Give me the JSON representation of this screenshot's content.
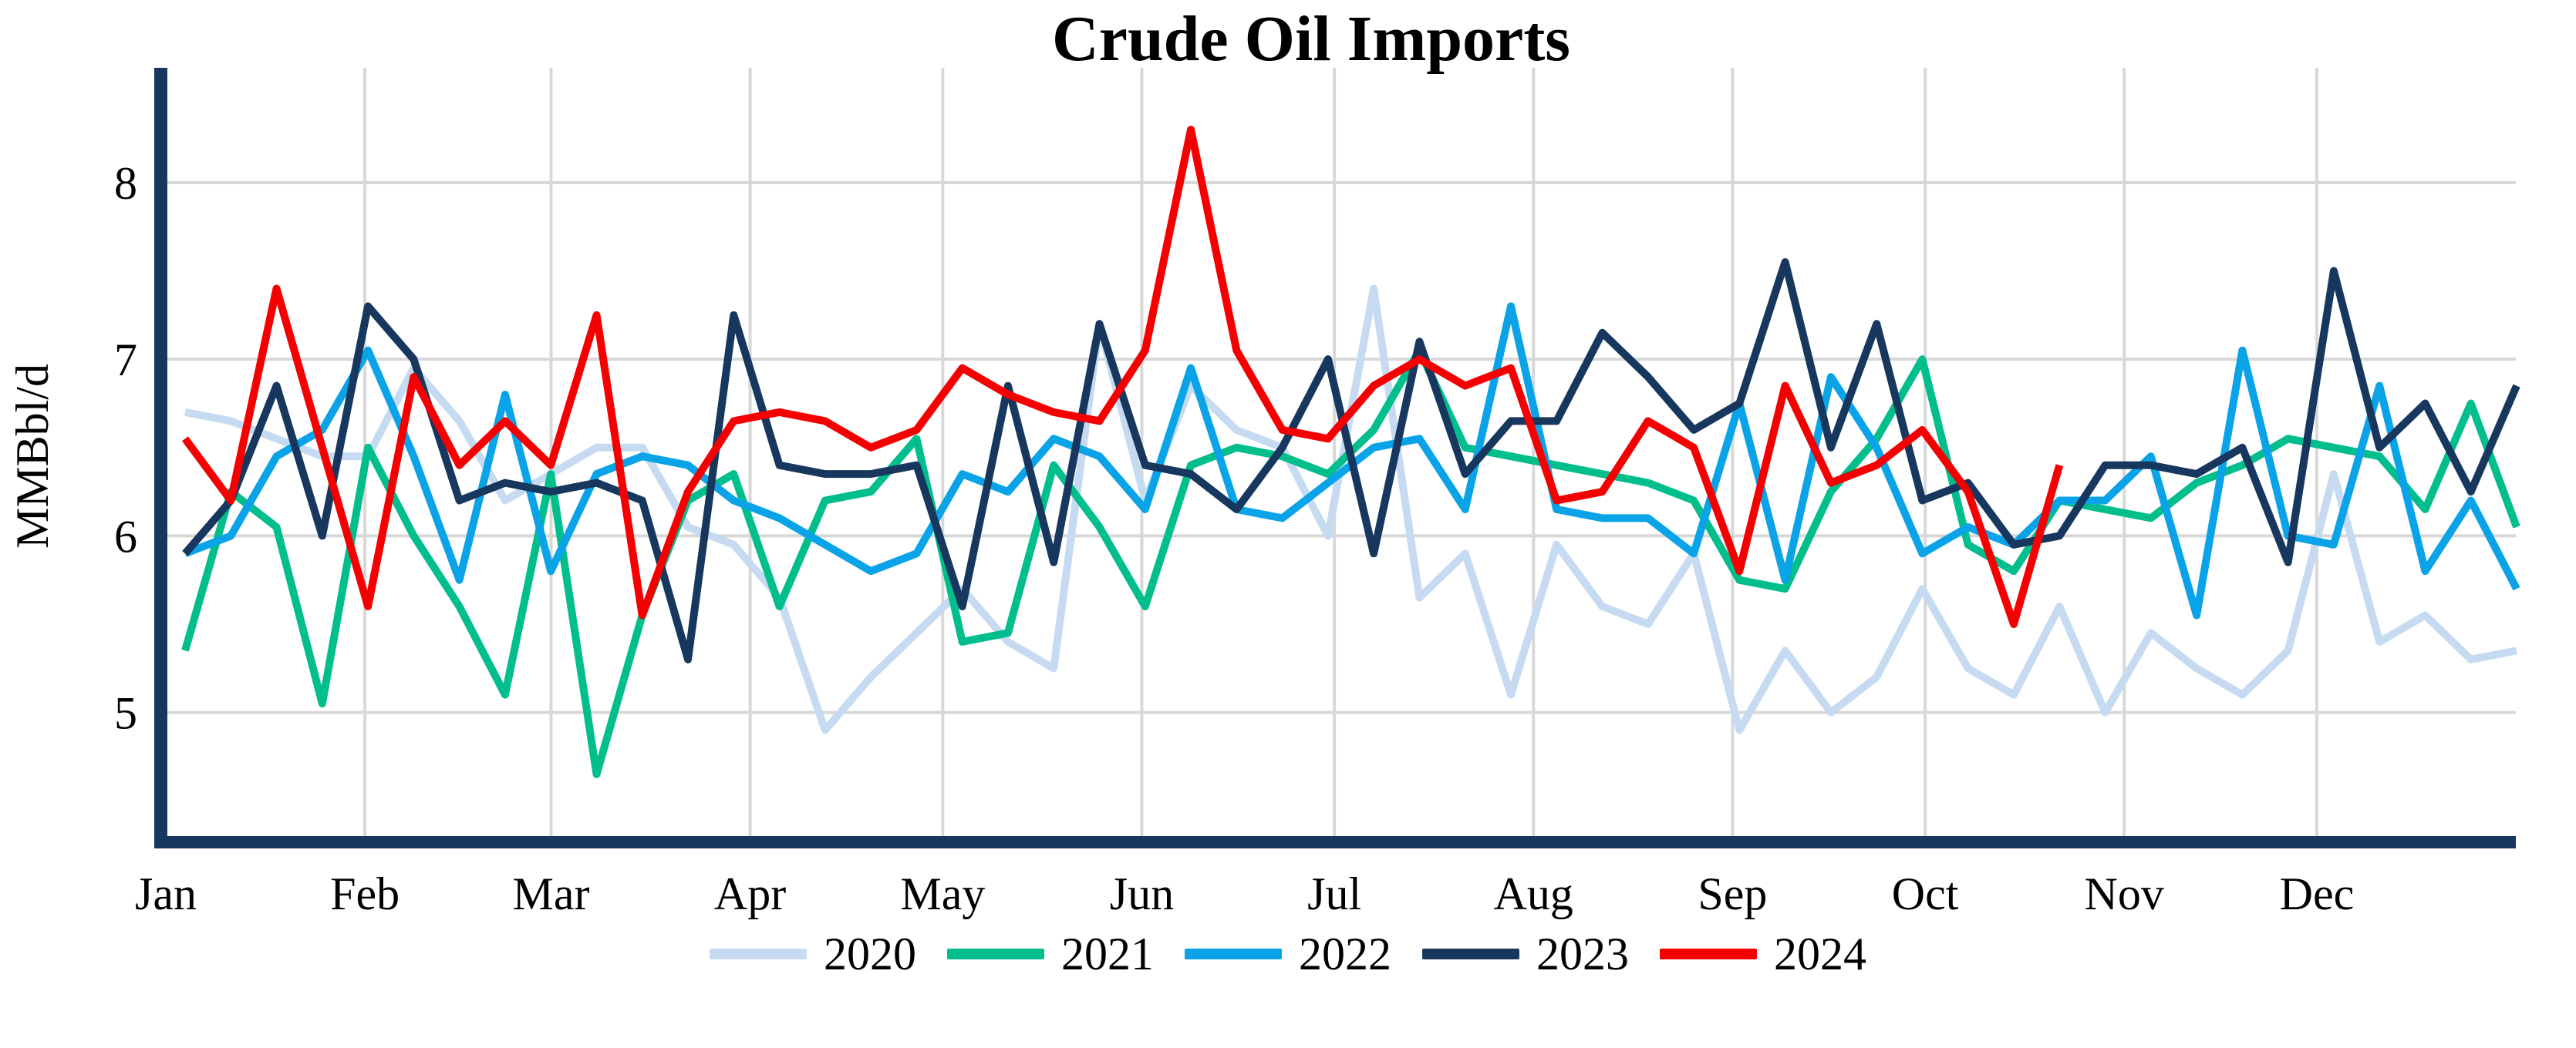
{
  "chart_data": {
    "type": "line",
    "title": "Crude Oil Imports",
    "ylabel": "MMBbl/d",
    "unit": "MMBbl/d",
    "x_tick_labels": [
      "Jan",
      "Feb",
      "Mar",
      "Apr",
      "May",
      "Jun",
      "Jul",
      "Aug",
      "Sep",
      "Oct",
      "Nov",
      "Dec"
    ],
    "month_days": [
      31,
      29,
      31,
      30,
      31,
      30,
      31,
      31,
      30,
      31,
      30,
      31
    ],
    "yticks": [
      5,
      6,
      7,
      8
    ],
    "ylim": [
      4.3,
      8.65
    ],
    "grid": true,
    "legend_position": "bottom",
    "points_per_year": 52,
    "colors": {
      "grid": "#d8d8d8",
      "axis": "#17375e",
      "text": "#000000",
      "background": "#ffffff"
    },
    "series": [
      {
        "name": "2020",
        "color": "#c6dbf1",
        "values": [
          6.7,
          6.65,
          6.55,
          6.45,
          6.45,
          6.95,
          6.65,
          6.2,
          6.35,
          6.5,
          6.5,
          6.05,
          5.95,
          5.65,
          4.9,
          5.2,
          5.45,
          5.7,
          5.4,
          5.25,
          7.2,
          6.2,
          6.85,
          6.6,
          6.5,
          6.0,
          7.4,
          5.65,
          5.9,
          5.1,
          5.95,
          5.6,
          5.5,
          5.9,
          4.9,
          5.35,
          5.0,
          5.2,
          5.7,
          5.25,
          5.1,
          5.6,
          5.0,
          5.45,
          5.25,
          5.1,
          5.35,
          6.35,
          5.4,
          5.55,
          5.3,
          5.35
        ]
      },
      {
        "name": "2021",
        "color": "#02be8c",
        "values": [
          5.35,
          6.25,
          6.05,
          5.05,
          6.5,
          6.0,
          5.6,
          5.1,
          6.35,
          4.65,
          5.55,
          6.2,
          6.35,
          5.6,
          6.2,
          6.25,
          6.55,
          5.4,
          5.45,
          6.4,
          6.05,
          5.6,
          6.4,
          6.5,
          6.45,
          6.35,
          6.6,
          7.05,
          6.5,
          6.45,
          6.4,
          6.35,
          6.3,
          6.2,
          5.75,
          5.7,
          6.25,
          6.55,
          7.0,
          5.95,
          5.8,
          6.2,
          6.15,
          6.1,
          6.3,
          6.4,
          6.55,
          6.5,
          6.45,
          6.15,
          6.75,
          6.05
        ]
      },
      {
        "name": "2022",
        "color": "#0aa3e8",
        "values": [
          5.9,
          6.0,
          6.45,
          6.6,
          7.05,
          6.45,
          5.75,
          6.8,
          5.8,
          6.35,
          6.45,
          6.4,
          6.2,
          6.1,
          5.95,
          5.8,
          5.9,
          6.35,
          6.25,
          6.55,
          6.45,
          6.15,
          6.95,
          6.15,
          6.1,
          6.3,
          6.5,
          6.55,
          6.15,
          7.3,
          6.15,
          6.1,
          6.1,
          5.9,
          6.75,
          5.75,
          6.9,
          6.5,
          5.9,
          6.05,
          5.95,
          6.2,
          6.2,
          6.45,
          5.55,
          7.05,
          6.0,
          5.95,
          6.85,
          5.8,
          6.2,
          5.7
        ]
      },
      {
        "name": "2023",
        "color": "#17375e",
        "values": [
          5.9,
          6.2,
          6.85,
          6.0,
          7.3,
          7.0,
          6.2,
          6.3,
          6.25,
          6.3,
          6.2,
          5.3,
          7.25,
          6.4,
          6.35,
          6.35,
          6.4,
          5.6,
          6.85,
          5.85,
          7.2,
          6.4,
          6.35,
          6.15,
          6.5,
          7.0,
          5.9,
          7.1,
          6.35,
          6.65,
          6.65,
          7.15,
          6.9,
          6.6,
          6.75,
          7.55,
          6.5,
          7.2,
          6.2,
          6.3,
          5.95,
          6.0,
          6.4,
          6.4,
          6.35,
          6.5,
          5.85,
          7.5,
          6.5,
          6.75,
          6.25,
          6.85
        ]
      },
      {
        "name": "2024",
        "color": "#f40000",
        "values": [
          6.55,
          6.2,
          7.4,
          6.5,
          5.6,
          6.9,
          6.4,
          6.65,
          6.4,
          7.25,
          5.55,
          6.25,
          6.65,
          6.7,
          6.65,
          6.5,
          6.6,
          6.95,
          6.8,
          6.7,
          6.65,
          7.05,
          8.3,
          7.05,
          6.6,
          6.55,
          6.85,
          7.0,
          6.85,
          6.95,
          6.2,
          6.25,
          6.65,
          6.5,
          5.8,
          6.85,
          6.3,
          6.4,
          6.6,
          6.25,
          5.5,
          6.4
        ]
      }
    ]
  }
}
